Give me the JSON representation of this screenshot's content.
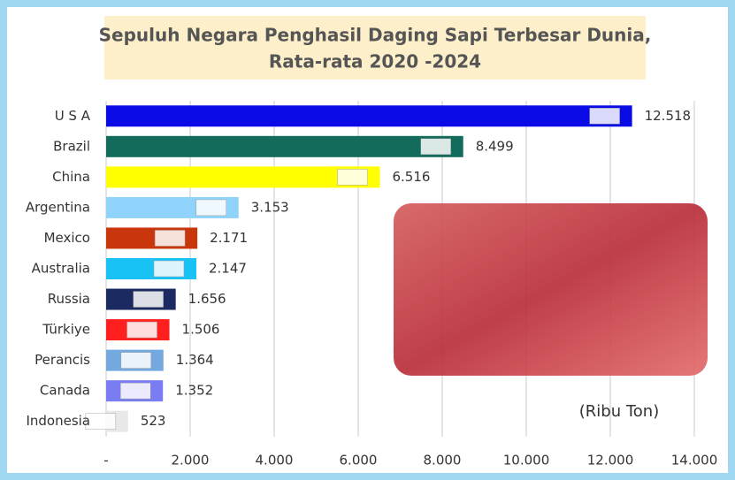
{
  "chart_data": {
    "type": "bar",
    "orientation": "horizontal",
    "title_lines": [
      "Sepuluh Negara Penghasil Daging Sapi Terbesar Dunia,",
      "Rata-rata 2020 -2024"
    ],
    "annotation": "(Ribu Ton)",
    "categories": [
      "U S A",
      "Brazil",
      "China",
      "Argentina",
      "Mexico",
      "Australia",
      "Russia",
      "Türkiye",
      "Perancis",
      "Canada",
      "Indonesia"
    ],
    "values": [
      12518,
      8499,
      6516,
      3153,
      2171,
      2147,
      1656,
      1506,
      1364,
      1352,
      523
    ],
    "value_labels": [
      "12.518",
      "8.499",
      "6.516",
      "3.153",
      "2.171",
      "2.147",
      "1.656",
      "1.506",
      "1.364",
      "1.352",
      "523"
    ],
    "colors": [
      "#0a0ae6",
      "#136b5c",
      "#ffff00",
      "#8fd3fb",
      "#c9360c",
      "#19c2f5",
      "#1b2a60",
      "#ff1f1f",
      "#74a9df",
      "#7a7cf2",
      "#e8e8e8"
    ],
    "xlim": [
      0,
      14000
    ],
    "xticks": [
      {
        "value": 0,
        "label": "-"
      },
      {
        "value": 2000,
        "label": "2.000"
      },
      {
        "value": 4000,
        "label": "4.000"
      },
      {
        "value": 6000,
        "label": "6.000"
      },
      {
        "value": 8000,
        "label": "8.000"
      },
      {
        "value": 10000,
        "label": "10.000"
      },
      {
        "value": 12000,
        "label": "12.000"
      },
      {
        "value": 14000,
        "label": "14.000"
      }
    ],
    "grid": true
  }
}
